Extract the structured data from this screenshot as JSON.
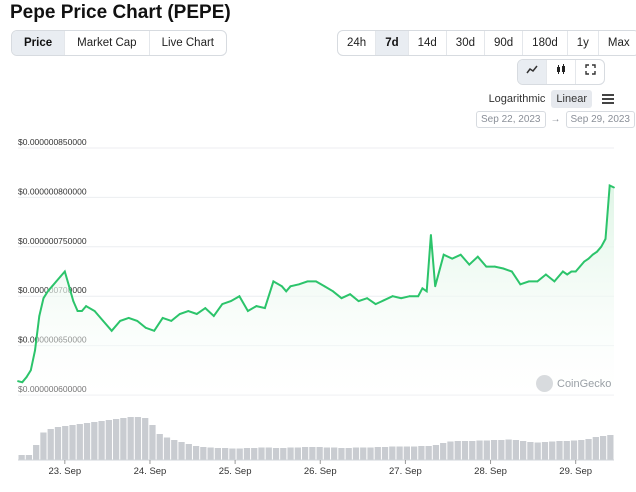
{
  "page": {
    "title": "Pepe Price Chart (PEPE)"
  },
  "tabs": [
    {
      "label": "Price",
      "active": true
    },
    {
      "label": "Market Cap",
      "active": false
    },
    {
      "label": "Live Chart",
      "active": false
    }
  ],
  "ranges": [
    {
      "label": "24h",
      "active": false
    },
    {
      "label": "7d",
      "active": true
    },
    {
      "label": "14d",
      "active": false
    },
    {
      "label": "30d",
      "active": false
    },
    {
      "label": "90d",
      "active": false
    },
    {
      "label": "180d",
      "active": false
    },
    {
      "label": "1y",
      "active": false
    },
    {
      "label": "Max",
      "active": false
    }
  ],
  "chart_types": [
    {
      "icon": "line-chart-icon",
      "active": true
    },
    {
      "icon": "candlestick-icon",
      "active": false
    },
    {
      "icon": "fullscreen-icon",
      "active": false
    }
  ],
  "scale": {
    "log_label": "Logarithmic",
    "linear_label": "Linear",
    "selected": "Linear"
  },
  "date_range": {
    "from": "Sep 22, 2023",
    "arrow": "→",
    "to": "Sep 29, 2023"
  },
  "watermark": "CoinGecko",
  "colors": {
    "line": "#2cc46b",
    "fill": "#dff5e6",
    "volume": "#c9ccd1",
    "active_tab": "#e9edf2"
  },
  "chart_data": {
    "type": "area",
    "ylim": [
      6e-07,
      8.5e-07
    ],
    "y_tick_values": [
      8.5e-07,
      8e-07,
      7.5e-07,
      7e-07,
      6.5e-07,
      6e-07
    ],
    "y_tick_labels": [
      "$0.000000850000",
      "$0.000000800000",
      "$0.000000750000",
      "$0.000000700000",
      "$0.000000650000",
      "$0.000000600000"
    ],
    "x_tick_values": [
      0.55,
      1.55,
      2.55,
      3.55,
      4.55,
      5.55,
      6.55
    ],
    "x_tick_labels": [
      "23. Sep",
      "24. Sep",
      "25. Sep",
      "26. Sep",
      "27. Sep",
      "28. Sep",
      "29. Sep"
    ],
    "xlim": [
      0,
      7
    ],
    "series": [
      {
        "x": [
          0,
          0.05,
          0.1,
          0.15,
          0.2,
          0.25,
          0.3,
          0.35,
          0.4,
          0.45,
          0.5,
          0.55,
          0.6,
          0.65,
          0.7,
          0.75,
          0.8,
          0.9,
          1.0,
          1.1,
          1.2,
          1.3,
          1.4,
          1.5,
          1.6,
          1.7,
          1.8,
          1.9,
          2.0,
          2.1,
          2.2,
          2.3,
          2.4,
          2.5,
          2.6,
          2.7,
          2.8,
          2.9,
          3.0,
          3.1,
          3.15,
          3.2,
          3.3,
          3.4,
          3.5,
          3.6,
          3.7,
          3.8,
          3.9,
          4.0,
          4.1,
          4.2,
          4.3,
          4.4,
          4.5,
          4.6,
          4.7,
          4.75,
          4.8,
          4.85,
          4.9,
          5.0,
          5.1,
          5.2,
          5.3,
          5.4,
          5.5,
          5.6,
          5.7,
          5.8,
          5.9,
          6.0,
          6.1,
          6.2,
          6.3,
          6.4,
          6.45,
          6.5,
          6.55,
          6.6,
          6.65,
          6.7,
          6.75,
          6.8,
          6.85,
          6.9,
          6.95,
          7.0
        ],
        "y": [
          6.14e-07,
          6.13e-07,
          6.18e-07,
          6.25e-07,
          6.45e-07,
          6.8e-07,
          6.98e-07,
          7.05e-07,
          7.1e-07,
          7.15e-07,
          7.2e-07,
          7.25e-07,
          7.1e-07,
          6.95e-07,
          6.85e-07,
          6.85e-07,
          6.9e-07,
          6.85e-07,
          6.75e-07,
          6.65e-07,
          6.75e-07,
          6.78e-07,
          6.75e-07,
          6.68e-07,
          6.65e-07,
          6.78e-07,
          6.75e-07,
          6.82e-07,
          6.85e-07,
          6.82e-07,
          6.88e-07,
          6.8e-07,
          6.92e-07,
          6.95e-07,
          7e-07,
          6.85e-07,
          6.9e-07,
          6.88e-07,
          7.15e-07,
          7.1e-07,
          7.05e-07,
          7.1e-07,
          7.12e-07,
          7.15e-07,
          7.15e-07,
          7.1e-07,
          7.05e-07,
          6.98e-07,
          7.02e-07,
          6.95e-07,
          6.98e-07,
          6.92e-07,
          6.96e-07,
          7e-07,
          6.98e-07,
          7e-07,
          7e-07,
          7.08e-07,
          7.05e-07,
          7.62e-07,
          7.1e-07,
          7.42e-07,
          7.38e-07,
          7.42e-07,
          7.32e-07,
          7.4e-07,
          7.3e-07,
          7.3e-07,
          7.28e-07,
          7.25e-07,
          7.12e-07,
          7.15e-07,
          7.15e-07,
          7.22e-07,
          7.15e-07,
          7.25e-07,
          7.22e-07,
          7.25e-07,
          7.25e-07,
          7.3e-07,
          7.35e-07,
          7.38e-07,
          7.42e-07,
          7.45e-07,
          7.5e-07,
          7.58e-07,
          8.12e-07,
          8.1e-07
        ]
      }
    ],
    "volume": [
      0.1,
      0.1,
      0.3,
      0.55,
      0.62,
      0.66,
      0.68,
      0.7,
      0.72,
      0.74,
      0.76,
      0.78,
      0.8,
      0.82,
      0.84,
      0.86,
      0.86,
      0.84,
      0.7,
      0.52,
      0.45,
      0.4,
      0.36,
      0.32,
      0.28,
      0.26,
      0.25,
      0.24,
      0.24,
      0.23,
      0.23,
      0.24,
      0.24,
      0.25,
      0.25,
      0.24,
      0.24,
      0.25,
      0.25,
      0.26,
      0.26,
      0.26,
      0.25,
      0.25,
      0.24,
      0.24,
      0.25,
      0.25,
      0.25,
      0.26,
      0.26,
      0.27,
      0.27,
      0.27,
      0.27,
      0.28,
      0.28,
      0.3,
      0.34,
      0.37,
      0.38,
      0.38,
      0.38,
      0.39,
      0.39,
      0.4,
      0.4,
      0.41,
      0.4,
      0.38,
      0.36,
      0.35,
      0.36,
      0.37,
      0.38,
      0.38,
      0.39,
      0.4,
      0.42,
      0.46,
      0.48,
      0.5
    ]
  }
}
